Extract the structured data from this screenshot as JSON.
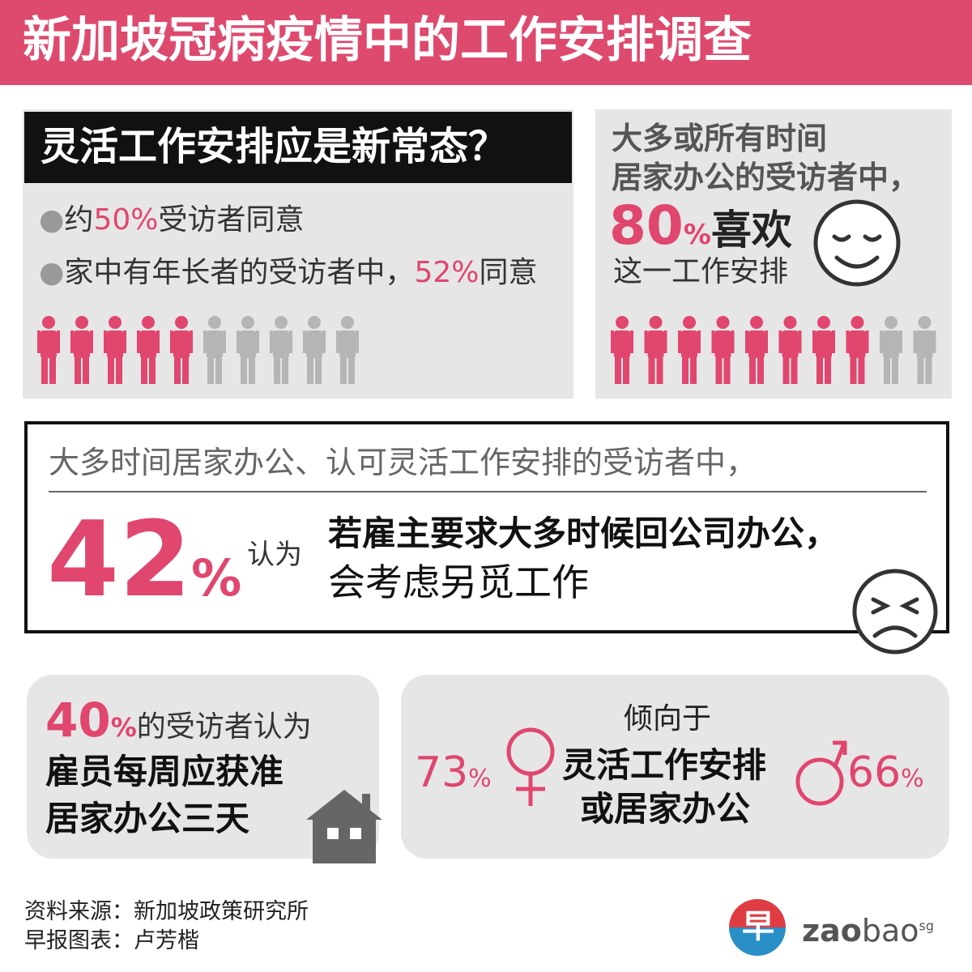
{
  "header": {
    "title": "新加坡冠病疫情中的工作安排调查"
  },
  "panel_new_normal": {
    "heading": "灵活工作安排应是新常态？",
    "bullets": [
      {
        "prefix": "约",
        "value": "50",
        "unit": "%",
        "suffix": "受访者同意"
      },
      {
        "prefix": "家中有年长者的受访者中，",
        "value": "52",
        "unit": "%",
        "suffix": "同意"
      }
    ]
  },
  "panel_like": {
    "lines": [
      "大多或所有时间",
      "居家办公的受访者中，"
    ],
    "value": "80",
    "unit": "%",
    "verb": "喜欢",
    "suffix": "这一工作安排"
  },
  "panel_quit": {
    "intro": "大多时间居家办公、认可灵活工作安排的受访者中，",
    "value": "42",
    "unit": "%",
    "verb": "认为",
    "lines": [
      "若雇主要求大多时候回公司办公，",
      "会考虑另觅工作"
    ]
  },
  "panel_three_days": {
    "value": "40",
    "unit": "%",
    "text": "的受访者认为",
    "lines": [
      "雇员每周应获准",
      "居家办公三天"
    ]
  },
  "panel_gender": {
    "lead": "倾向于",
    "lines": [
      "灵活工作安排",
      "或居家办公"
    ],
    "female": {
      "value": "73",
      "unit": "%"
    },
    "male": {
      "value": "66",
      "unit": "%"
    }
  },
  "footer": {
    "source": "资料来源：新加坡政策研究所",
    "credit": "早报图表：卢芳楷",
    "logo": {
      "mark": "早",
      "zao": "zao",
      "bao": "bao",
      "sg": "sg"
    }
  }
}
